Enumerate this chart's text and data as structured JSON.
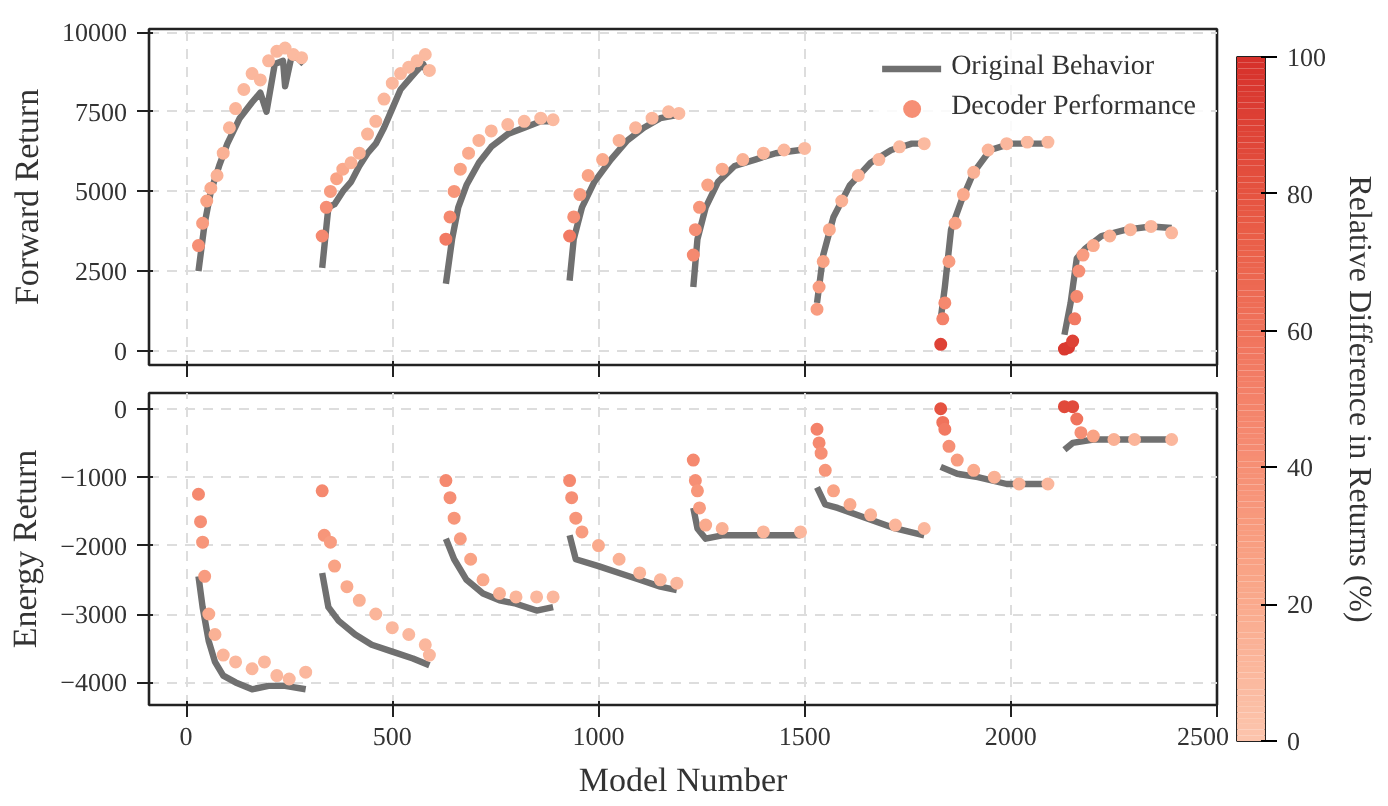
{
  "chart_data": [
    {
      "type": "scatter",
      "ylabel": "Forward Return",
      "xlim": [
        -90,
        2500
      ],
      "xticks": [
        0,
        500,
        1000,
        1500,
        2000,
        2500
      ],
      "ylim": [
        -450,
        10100
      ],
      "yticks": [
        0,
        2500,
        5000,
        7500,
        10000
      ],
      "grid": true,
      "legend": "top right",
      "tick_labels": "y",
      "clim": [
        0,
        100
      ],
      "cticks": [
        0,
        20,
        40,
        60,
        80,
        100
      ],
      "clabel": "Relative Difference in Returns (%)",
      "series": [
        {
          "type": "line",
          "name": "Original Behavior",
          "color": "#707070",
          "line_style": "solid",
          "x": [
            30,
            45,
            60,
            80,
            100,
            130,
            160,
            180,
            195,
            215,
            235,
            240,
            255,
            270,
            285,
            300,
            330,
            345,
            360,
            380,
            400,
            420,
            440,
            460,
            480,
            500,
            520,
            540,
            560,
            575,
            585,
            600,
            630,
            645,
            660,
            680,
            710,
            740,
            780,
            820,
            860,
            890,
            910,
            930,
            940,
            960,
            990,
            1030,
            1070,
            1110,
            1150,
            1190,
            1210,
            1230,
            1240,
            1260,
            1290,
            1330,
            1380,
            1430,
            1490,
            1510,
            1530,
            1545,
            1570,
            1610,
            1660,
            1710,
            1760,
            1790,
            1810,
            1830,
            1840,
            1855,
            1880,
            1910,
            1950,
            2000,
            2090,
            2110,
            2130,
            2145,
            2160,
            2180,
            2220,
            2280,
            2340,
            2390
          ],
          "values": [
            2500,
            4000,
            5000,
            5800,
            6500,
            7300,
            7800,
            8100,
            7500,
            9000,
            9100,
            8300,
            9200,
            9200,
            9000,
            null,
            2600,
            4500,
            4600,
            5000,
            5300,
            5800,
            6200,
            6500,
            7000,
            7600,
            8200,
            8500,
            8800,
            9000,
            8700,
            null,
            2100,
            3500,
            4500,
            5200,
            5900,
            6400,
            6800,
            7000,
            7200,
            7200,
            null,
            2200,
            3500,
            4500,
            5300,
            6000,
            6600,
            7000,
            7300,
            7400,
            null,
            2000,
            3500,
            4500,
            5300,
            5800,
            6000,
            6200,
            6300,
            null,
            1500,
            3000,
            4200,
            5200,
            5900,
            6300,
            6500,
            6500,
            null,
            1000,
            2000,
            3800,
            4700,
            5600,
            6300,
            6500,
            6500,
            null,
            500,
            1500,
            2900,
            3200,
            3600,
            3800,
            3900,
            3850
          ]
        },
        {
          "type": "scatter",
          "name": "Decoder Performance",
          "marker": "circle",
          "colors": [
            "#f68f75",
            "#f89c80",
            "#f9a385",
            "#faaa8d",
            "#fab195",
            "#fab195",
            "#fbb59a",
            "#fbb59a",
            "#fbb79d",
            "#fbb79d",
            "#fbb79d",
            "#fbb79d",
            "#fbb79d",
            "#fbbaa0",
            "#fbbaa0",
            "#fbbaa0",
            "#f5896f",
            "#f68f75",
            "#f89c80",
            "#f9a385",
            "#faaa8d",
            "#fab195",
            "#fab195",
            "#fbb59a",
            "#fbb59a",
            "#fbb79d",
            "#fbb79d",
            "#fbb79d",
            "#fbbaa0",
            "#fbbaa0",
            "#fbbaa0",
            "#fbbaa0",
            "#f27a63",
            "#f5896f",
            "#f7967a",
            "#f9a385",
            "#faaa8d",
            "#fab195",
            "#fbb59a",
            "#fbb79d",
            "#fbbaa0",
            "#fbbaa0",
            "#fbbaa0",
            "#f27a63",
            "#f68f75",
            "#f89c80",
            "#f9a385",
            "#faaa8d",
            "#fab195",
            "#fbb59a",
            "#fbb79d",
            "#fbbaa0",
            "#fbbaa0",
            "#f5896f",
            "#f68f75",
            "#f7967a",
            "#f9a385",
            "#faaa8d",
            "#fab195",
            "#fbb59a",
            "#fbb79d",
            "#fbbaa0",
            "#f89c80",
            "#f89c80",
            "#f9a385",
            "#faaa8d",
            "#fab195",
            "#fbb59a",
            "#fbb79d",
            "#fbbaa0",
            "#fbbaa0",
            "#de4236",
            "#f4826a",
            "#f5896f",
            "#f89c80",
            "#f9a385",
            "#faaa8d",
            "#fab195",
            "#fbb59a",
            "#fbb79d",
            "#fbbaa0",
            "#fbbaa0",
            "#da3930",
            "#da3930",
            "#de4236",
            "#f27a63",
            "#f5896f",
            "#f68f75",
            "#f89c80",
            "#faaa8d",
            "#fab195",
            "#fbb59a",
            "#fbb79d",
            "#fbb79d"
          ],
          "x": [
            30,
            40,
            50,
            60,
            75,
            90,
            105,
            120,
            140,
            160,
            180,
            200,
            220,
            240,
            260,
            280,
            330,
            340,
            350,
            365,
            380,
            400,
            420,
            440,
            460,
            480,
            500,
            520,
            540,
            560,
            580,
            590,
            630,
            640,
            650,
            665,
            685,
            710,
            740,
            780,
            820,
            860,
            890,
            930,
            940,
            955,
            975,
            1010,
            1050,
            1090,
            1130,
            1170,
            1195,
            1230,
            1235,
            1245,
            1265,
            1300,
            1350,
            1400,
            1450,
            1500,
            1530,
            1535,
            1545,
            1560,
            1590,
            1630,
            1680,
            1730,
            1790,
            1830,
            1835,
            1840,
            1850,
            1865,
            1885,
            1910,
            1945,
            1990,
            2040,
            2090,
            2130,
            2140,
            2150,
            2155,
            2160,
            2165,
            2175,
            2200,
            2240,
            2290,
            2340,
            2390
          ],
          "values": [
            3300,
            4000,
            4700,
            5100,
            5500,
            6200,
            7000,
            7600,
            8200,
            8700,
            8500,
            9100,
            9400,
            9500,
            9300,
            9200,
            3600,
            4500,
            5000,
            5400,
            5700,
            5900,
            6200,
            6800,
            7200,
            7900,
            8400,
            8700,
            8900,
            9100,
            9300,
            8800,
            3500,
            4200,
            5000,
            5700,
            6200,
            6600,
            6900,
            7100,
            7200,
            7300,
            7250,
            3600,
            4200,
            4900,
            5500,
            6000,
            6600,
            7000,
            7300,
            7500,
            7450,
            3000,
            3800,
            4500,
            5200,
            5700,
            6000,
            6200,
            6300,
            6350,
            1300,
            2000,
            2800,
            3800,
            4700,
            5500,
            6000,
            6400,
            6500,
            200,
            1000,
            1500,
            2800,
            4000,
            4900,
            5600,
            6300,
            6500,
            6550,
            6550,
            50,
            100,
            300,
            1000,
            1700,
            2500,
            3000,
            3300,
            3600,
            3800,
            3900,
            3700
          ],
          "cvalues": [
            40,
            30,
            25,
            20,
            15,
            15,
            12,
            12,
            10,
            10,
            10,
            10,
            10,
            8,
            8,
            8,
            45,
            40,
            30,
            25,
            20,
            15,
            15,
            12,
            12,
            10,
            10,
            10,
            8,
            8,
            8,
            8,
            55,
            45,
            35,
            25,
            20,
            15,
            12,
            10,
            8,
            8,
            8,
            55,
            40,
            30,
            25,
            20,
            15,
            12,
            10,
            8,
            8,
            45,
            40,
            35,
            25,
            20,
            15,
            12,
            10,
            8,
            30,
            30,
            25,
            20,
            15,
            12,
            10,
            8,
            8,
            90,
            50,
            45,
            30,
            25,
            20,
            15,
            12,
            10,
            8,
            8,
            95,
            95,
            90,
            55,
            45,
            40,
            30,
            20,
            15,
            12,
            10,
            10
          ]
        }
      ]
    },
    {
      "type": "scatter",
      "xlabel": "Model Number",
      "ylabel": "Energy Return",
      "xlim": [
        -90,
        2500
      ],
      "xticks": [
        0,
        500,
        1000,
        1500,
        2000,
        2500
      ],
      "ylim": [
        -4330,
        230
      ],
      "yticks": [
        {
          "value": -4000,
          "label": "−4000"
        },
        {
          "value": -3000,
          "label": "−3000"
        },
        {
          "value": -2000,
          "label": "−2000"
        },
        {
          "value": -1000,
          "label": "−1000"
        },
        0
      ],
      "grid": true,
      "series": [
        {
          "type": "line",
          "color": "#707070",
          "line_style": "solid",
          "x": [
            30,
            40,
            55,
            70,
            90,
            120,
            160,
            200,
            240,
            290,
            310,
            330,
            345,
            370,
            410,
            450,
            500,
            550,
            590,
            610,
            630,
            650,
            680,
            720,
            760,
            800,
            850,
            890,
            910,
            930,
            945,
            1000,
            1050,
            1100,
            1150,
            1190,
            1210,
            1230,
            1240,
            1260,
            1300,
            1400,
            1490,
            1510,
            1530,
            1550,
            1580,
            1650,
            1720,
            1790,
            1810,
            1830,
            1870,
            1920,
            1990,
            2090,
            2110,
            2130,
            2150,
            2200,
            2300,
            2390
          ],
          "values": [
            -2450,
            -2900,
            -3400,
            -3700,
            -3900,
            -4000,
            -4100,
            -4050,
            -4050,
            -4100,
            null,
            -2400,
            -2900,
            -3100,
            -3300,
            -3450,
            -3550,
            -3650,
            -3750,
            null,
            -1900,
            -2200,
            -2500,
            -2700,
            -2800,
            -2850,
            -2950,
            -2900,
            null,
            -1850,
            -2200,
            -2300,
            -2400,
            -2500,
            -2600,
            -2650,
            null,
            -1450,
            -1750,
            -1900,
            -1850,
            -1850,
            -1850,
            null,
            -1150,
            -1400,
            -1450,
            -1600,
            -1750,
            -1850,
            null,
            -850,
            -950,
            -1000,
            -1100,
            -1100,
            null,
            -600,
            -500,
            -450,
            -450,
            -450
          ]
        },
        {
          "type": "scatter",
          "marker": "circle",
          "colors": [
            "#f5896f",
            "#f68f75",
            "#f7967a",
            "#f89c80",
            "#faaa8d",
            "#fab195",
            "#fbb59a",
            "#fbb79d",
            "#fbb79d",
            "#fbb79d",
            "#fbb79d",
            "#fbb79d",
            "#fbb79d",
            "#f5896f",
            "#f7967a",
            "#f89c80",
            "#f9a385",
            "#faaa8d",
            "#fab195",
            "#fbb59a",
            "#fbb79d",
            "#fbb79d",
            "#fbb79d",
            "#fbb79d",
            "#f5896f",
            "#f68f75",
            "#f7967a",
            "#f89c80",
            "#f9a385",
            "#faaa8d",
            "#fab195",
            "#fbb59a",
            "#fbb79d",
            "#fbb79d",
            "#f5896f",
            "#f68f75",
            "#f7967a",
            "#f89c80",
            "#faaa8d",
            "#fab195",
            "#fbb59a",
            "#fbb79d",
            "#fbb79d",
            "#f5896f",
            "#f68f75",
            "#f7967a",
            "#f89c80",
            "#faaa8d",
            "#fab195",
            "#fbb59a",
            "#fbb79d",
            "#f4826a",
            "#f5896f",
            "#f68f75",
            "#f7967a",
            "#f9a385",
            "#faaa8d",
            "#fab195",
            "#fbb59a",
            "#fbb79d",
            "#e55341",
            "#f0735c",
            "#f27a63",
            "#f68f75",
            "#f89c80",
            "#faaa8d",
            "#fab195",
            "#fbb59a",
            "#fbb79d",
            "#e14a3b",
            "#e14a3b",
            "#f0735c",
            "#f68f75",
            "#f9a385",
            "#fab195",
            "#fbb59a",
            "#fbb79d"
          ],
          "x": [
            30,
            35,
            40,
            45,
            55,
            70,
            90,
            120,
            160,
            190,
            220,
            250,
            290,
            330,
            335,
            350,
            360,
            390,
            420,
            460,
            500,
            540,
            580,
            590,
            630,
            640,
            650,
            665,
            690,
            720,
            760,
            800,
            850,
            890,
            930,
            935,
            945,
            960,
            1000,
            1050,
            1100,
            1150,
            1190,
            1230,
            1235,
            1240,
            1245,
            1260,
            1300,
            1400,
            1490,
            1530,
            1535,
            1540,
            1550,
            1570,
            1610,
            1660,
            1720,
            1790,
            1830,
            1835,
            1840,
            1850,
            1870,
            1910,
            1960,
            2020,
            2090,
            2130,
            2150,
            2160,
            2170,
            2200,
            2250,
            2300,
            2390
          ],
          "values": [
            -1250,
            -1650,
            -1950,
            -2450,
            -3000,
            -3300,
            -3600,
            -3700,
            -3800,
            -3700,
            -3900,
            -3950,
            -3850,
            -1200,
            -1850,
            -1950,
            -2300,
            -2600,
            -2800,
            -3000,
            -3200,
            -3300,
            -3450,
            -3600,
            -1050,
            -1300,
            -1600,
            -1900,
            -2200,
            -2500,
            -2700,
            -2750,
            -2750,
            -2750,
            -1050,
            -1300,
            -1600,
            -1800,
            -2000,
            -2200,
            -2400,
            -2500,
            -2550,
            -750,
            -1050,
            -1200,
            -1450,
            -1700,
            -1750,
            -1800,
            -1800,
            -300,
            -500,
            -650,
            -900,
            -1200,
            -1400,
            -1550,
            -1700,
            -1750,
            0,
            -200,
            -300,
            -550,
            -750,
            -900,
            -1000,
            -1100,
            -1100,
            30,
            30,
            -150,
            -350,
            -400,
            -450,
            -450,
            -450
          ]
        }
      ]
    }
  ]
}
